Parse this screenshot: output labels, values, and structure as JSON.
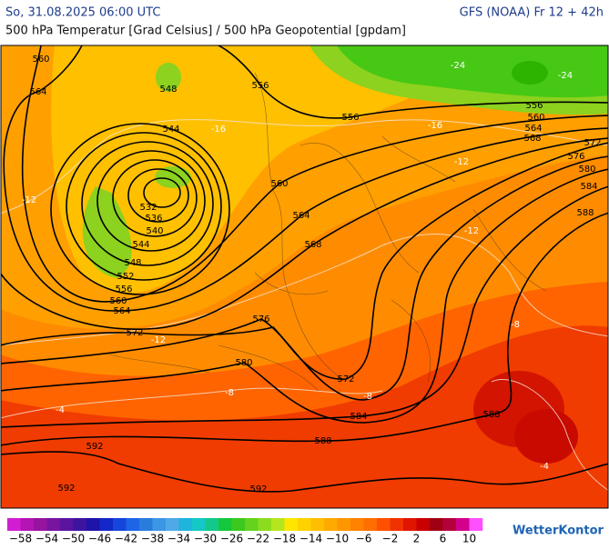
{
  "header": {
    "title": "So, 31.08.2025 06:00 UTC",
    "model": "GFS (NOAA) Fr 12 + 42h",
    "subtitle": "500 hPa Temperatur [Grad Celsius] / 500 hPa Geopotential [gpdam]"
  },
  "map": {
    "geopotential_labels": [
      "560",
      "564",
      "548",
      "556",
      "544",
      "556",
      "556",
      "560",
      "564",
      "568",
      "572",
      "576",
      "580",
      "584",
      "588",
      "560",
      "564",
      "568",
      "532",
      "536",
      "540",
      "544",
      "548",
      "552",
      "556",
      "560",
      "564",
      "572",
      "576",
      "580",
      "572",
      "584",
      "588",
      "588",
      "592",
      "592",
      "592"
    ],
    "temperature_labels": [
      "-24",
      "-24",
      "-16",
      "-16",
      "-12",
      "-12",
      "-12",
      "-12",
      "-8",
      "-8",
      "-8",
      "-4",
      "-4"
    ]
  },
  "colorbar": {
    "colors": [
      "#d21ed2",
      "#b414b4",
      "#9614a0",
      "#7814a0",
      "#5a14a0",
      "#3c14a0",
      "#1e14aa",
      "#1428c8",
      "#1446dc",
      "#1e64e6",
      "#287ddc",
      "#3c96e6",
      "#50a8e6",
      "#1eb4dc",
      "#14c8c8",
      "#14c88c",
      "#14c83c",
      "#3cc81e",
      "#64d21e",
      "#8cdc1e",
      "#b4e61e",
      "#ffe600",
      "#ffd200",
      "#ffbe00",
      "#ffaa00",
      "#ff9600",
      "#ff8200",
      "#ff6e00",
      "#ff5000",
      "#f03200",
      "#e11400",
      "#c80000",
      "#a00014",
      "#b4003c",
      "#d2008c",
      "#ff50ff"
    ],
    "labels": [
      "−58",
      "−54",
      "−50",
      "−46",
      "−42",
      "−38",
      "−34",
      "−30",
      "−26",
      "−22",
      "−18",
      "−14",
      "−10",
      "−6",
      "−2",
      "2",
      "6",
      "10"
    ]
  },
  "brand": "WetterKontor"
}
